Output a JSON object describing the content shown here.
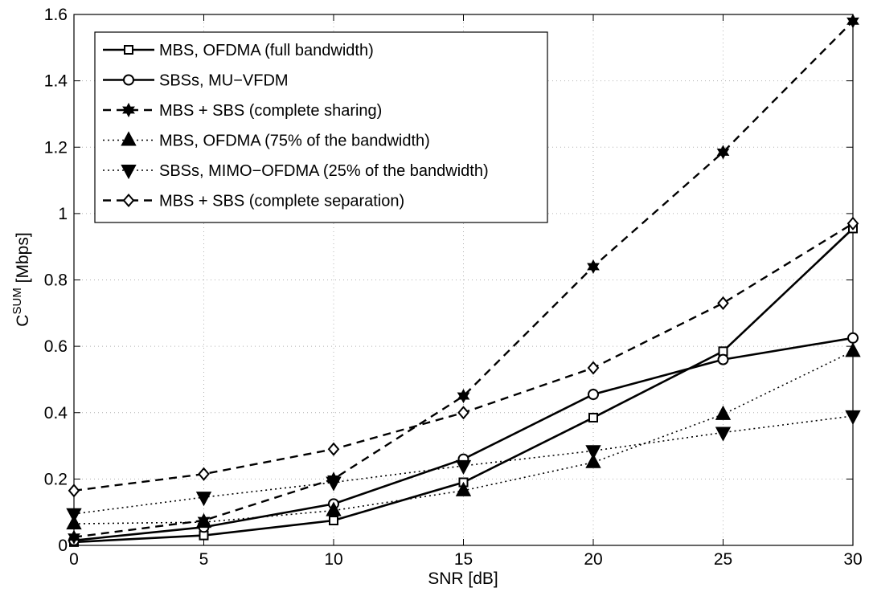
{
  "chart_data": {
    "type": "line",
    "xlabel": "SNR [dB]",
    "ylabel_main": "C",
    "ylabel_sup": "SUM",
    "ylabel_unit": " [Mbps]",
    "xlim": [
      0,
      30
    ],
    "ylim": [
      0,
      1.6
    ],
    "x_ticks": [
      "0",
      "5",
      "10",
      "15",
      "20",
      "25",
      "30"
    ],
    "y_ticks": [
      "0",
      "0.2",
      "0.4",
      "0.6",
      "0.8",
      "1",
      "1.2",
      "1.4",
      "1.6"
    ],
    "grid": true,
    "legend_position": "top-left",
    "x": [
      0,
      5,
      10,
      15,
      20,
      25,
      30
    ],
    "series": [
      {
        "name": "MBS, OFDMA (full bandwidth)",
        "line": "solid",
        "marker": "square",
        "values": [
          0.01,
          0.03,
          0.075,
          0.19,
          0.385,
          0.585,
          0.955
        ]
      },
      {
        "name": "SBSs, MU−VFDM",
        "line": "solid",
        "marker": "circle",
        "values": [
          0.015,
          0.055,
          0.125,
          0.26,
          0.455,
          0.56,
          0.625
        ]
      },
      {
        "name": "MBS + SBS (complete sharing)",
        "line": "dashed",
        "marker": "hexagram",
        "values": [
          0.025,
          0.075,
          0.2,
          0.45,
          0.84,
          1.185,
          1.58
        ]
      },
      {
        "name": "MBS, OFDMA (75% of the bandwidth)",
        "line": "dotted",
        "marker": "triangle-up",
        "values": [
          0.065,
          0.07,
          0.105,
          0.165,
          0.25,
          0.395,
          0.585
        ]
      },
      {
        "name": "SBSs, MIMO−OFDMA (25% of the bandwidth)",
        "line": "dotted",
        "marker": "triangle-down",
        "values": [
          0.095,
          0.145,
          0.19,
          0.24,
          0.285,
          0.34,
          0.39
        ]
      },
      {
        "name": "MBS + SBS (complete separation)",
        "line": "dashed",
        "marker": "diamond",
        "values": [
          0.165,
          0.215,
          0.29,
          0.4,
          0.535,
          0.73,
          0.97
        ]
      }
    ]
  }
}
